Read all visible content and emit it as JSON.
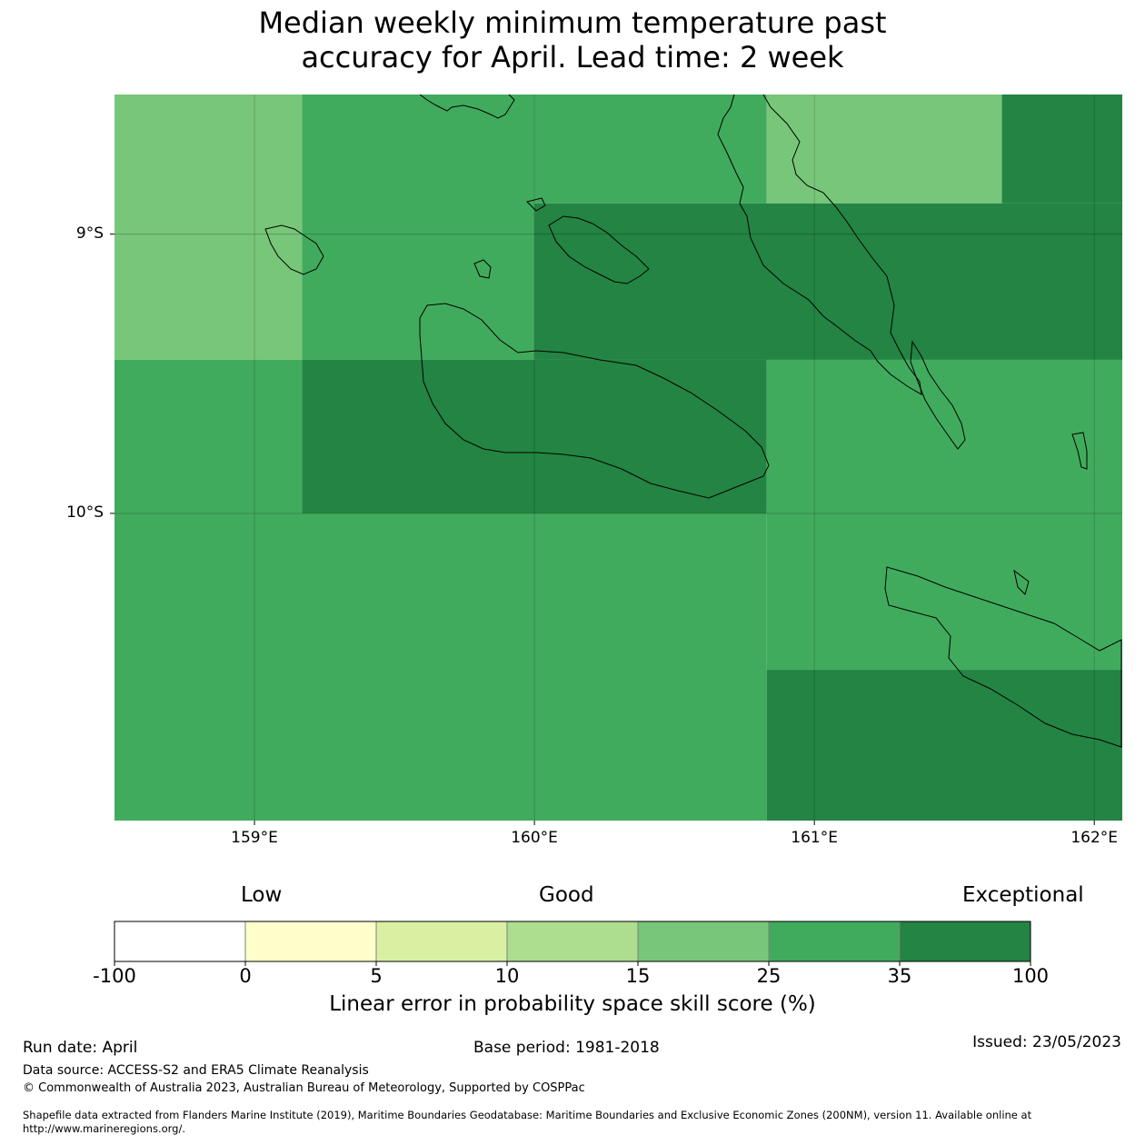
{
  "title_line1": "Median weekly minimum temperature past",
  "title_line2": "accuracy for April. Lead time: 2 week",
  "map": {
    "lon_range": [
      158.5,
      162.1
    ],
    "lat_range": [
      -11.1,
      -8.5
    ],
    "x_ticks": [
      {
        "lon": 159,
        "label": "159°E"
      },
      {
        "lon": 160,
        "label": "160°E"
      },
      {
        "lon": 161,
        "label": "161°E"
      },
      {
        "lon": 162,
        "label": "162°E"
      }
    ],
    "y_ticks": [
      {
        "lat": -9,
        "label": "9°S"
      },
      {
        "lat": -10,
        "label": "10°S"
      }
    ],
    "cells": [
      {
        "lon": [
          158.5,
          159.17
        ],
        "lat": [
          -9.45,
          -8.5
        ],
        "color": "#78c679"
      },
      {
        "lon": [
          159.17,
          160.0
        ],
        "lat": [
          -9.45,
          -8.5
        ],
        "color": "#41ab5d"
      },
      {
        "lon": [
          160.0,
          160.83
        ],
        "lat": [
          -8.89,
          -8.5
        ],
        "color": "#41ab5d"
      },
      {
        "lon": [
          160.83,
          161.67
        ],
        "lat": [
          -8.89,
          -8.5
        ],
        "color": "#78c679"
      },
      {
        "lon": [
          161.67,
          162.1
        ],
        "lat": [
          -8.89,
          -8.5
        ],
        "color": "#238443"
      },
      {
        "lon": [
          160.0,
          162.1
        ],
        "lat": [
          -9.45,
          -8.89
        ],
        "color": "#238443"
      },
      {
        "lon": [
          158.5,
          159.17
        ],
        "lat": [
          -10.0,
          -9.45
        ],
        "color": "#41ab5d"
      },
      {
        "lon": [
          159.17,
          160.83
        ],
        "lat": [
          -10.0,
          -9.45
        ],
        "color": "#238443"
      },
      {
        "lon": [
          160.83,
          162.1
        ],
        "lat": [
          -10.0,
          -9.45
        ],
        "color": "#41ab5d"
      },
      {
        "lon": [
          158.5,
          160.83
        ],
        "lat": [
          -11.1,
          -10.0
        ],
        "color": "#41ab5d"
      },
      {
        "lon": [
          160.83,
          162.1
        ],
        "lat": [
          -10.56,
          -10.0
        ],
        "color": "#41ab5d"
      },
      {
        "lon": [
          160.83,
          162.1
        ],
        "lat": [
          -11.1,
          -10.56
        ],
        "color": "#238443"
      }
    ]
  },
  "colorbar": {
    "head_low": "Low",
    "head_good": "Good",
    "head_exceptional": "Exceptional",
    "colors": [
      "#ffffff",
      "#ffffcc",
      "#d9f0a3",
      "#addd8e",
      "#78c679",
      "#41ab5d",
      "#238443"
    ],
    "boundaries": [
      "-100",
      "0",
      "5",
      "10",
      "15",
      "25",
      "35",
      "100"
    ],
    "label": "Linear error in probability space skill score (%)"
  },
  "footer": {
    "run_date": "Run date: April",
    "base_period": "Base period: 1981-2018",
    "issued": "Issued: 23/05/2023",
    "data_source": "Data source: ACCESS-S2 and ERA5 Climate Reanalysis",
    "copyright": "© Commonwealth of Australia 2023, Australian Bureau of Meteorology, Supported by COSPPac",
    "shapefile_line1": "Shapefile data extracted from Flanders Marine Institute (2019), Maritime Boundaries Geodatabase: Maritime Boundaries and Exclusive Economic Zones (200NM), version 11. Available online at",
    "shapefile_line2": "http://www.marineregions.org/."
  }
}
